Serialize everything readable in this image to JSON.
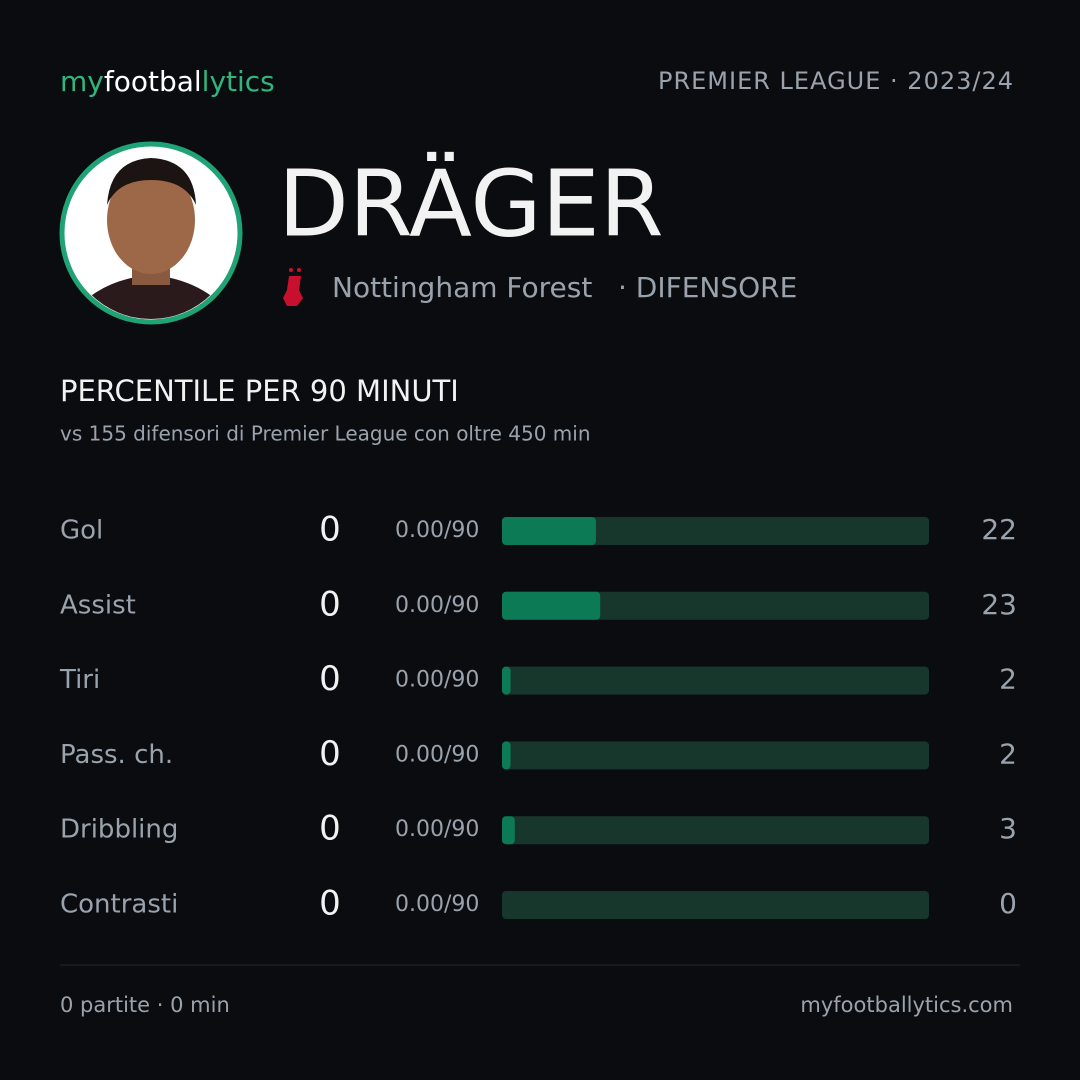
{
  "header": {
    "brand_parts": [
      "my",
      "footbal",
      "lytics"
    ],
    "league": "PREMIER LEAGUE · 2023/24"
  },
  "player": {
    "name": "DRÄGER",
    "team": "Nottingham Forest",
    "role": "· DIFENSORE"
  },
  "section": {
    "title": "PERCENTILE PER 90 MINUTI",
    "subtitle": "vs 155 difensori di Premier League con oltre 450 min"
  },
  "chart_data": {
    "type": "hbar",
    "categories": [
      "Gol",
      "Assist",
      "Tiri",
      "Pass. ch.",
      "Dribbling",
      "Contrasti"
    ],
    "totals": [
      0,
      0,
      0,
      0,
      0,
      0
    ],
    "rates": [
      "0.00/90",
      "0.00/90",
      "0.00/90",
      "0.00/90",
      "0.00/90",
      "0.00/90"
    ],
    "values": [
      22,
      23,
      2,
      2,
      3,
      0
    ],
    "xlim": [
      0,
      100
    ],
    "color": "#0b7a55",
    "track_color": "#17372c"
  },
  "footer": {
    "summary": "0 partite · 0 min",
    "site": "myfootballytics.com"
  }
}
